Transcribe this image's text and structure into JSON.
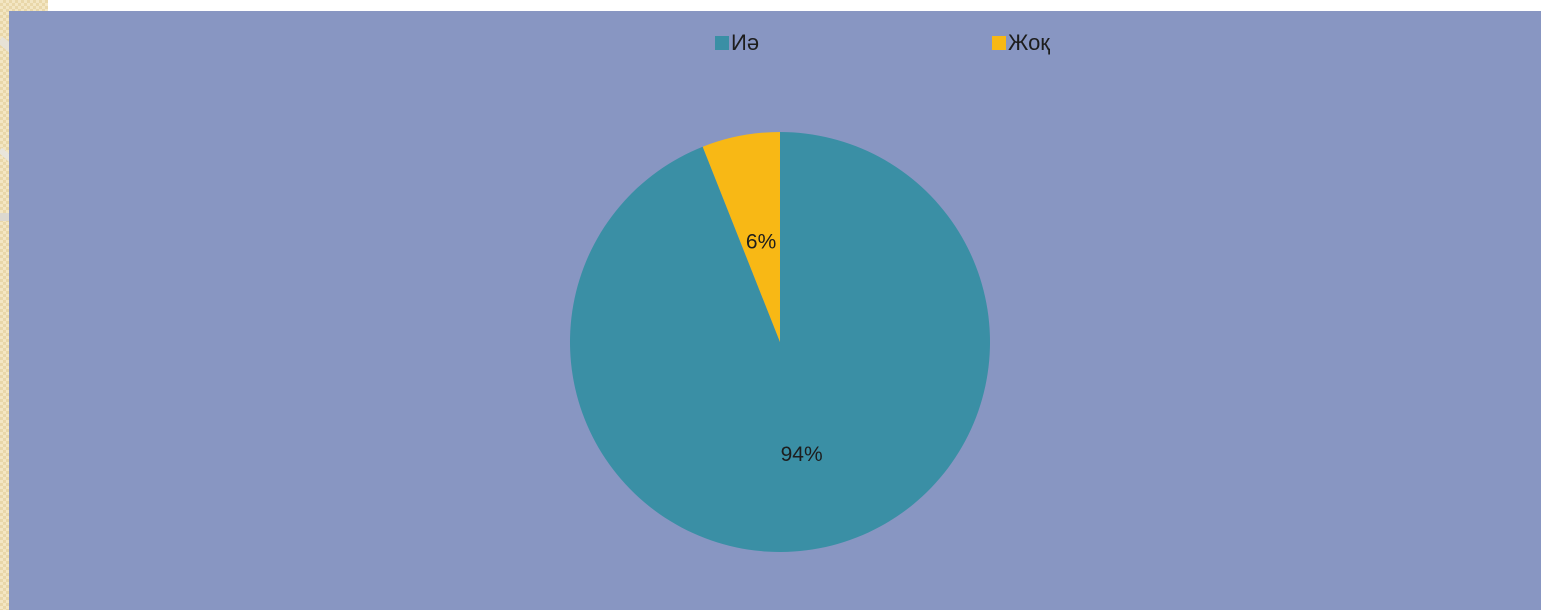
{
  "chart_data": {
    "type": "pie",
    "categories": [
      "Иә",
      "Жоқ"
    ],
    "values": [
      94,
      6
    ],
    "data_labels": [
      "94%",
      "6%"
    ],
    "colors": [
      "#3a8fa5",
      "#f8b815"
    ],
    "background_color": "#8896c2",
    "legend_placement": "top"
  }
}
